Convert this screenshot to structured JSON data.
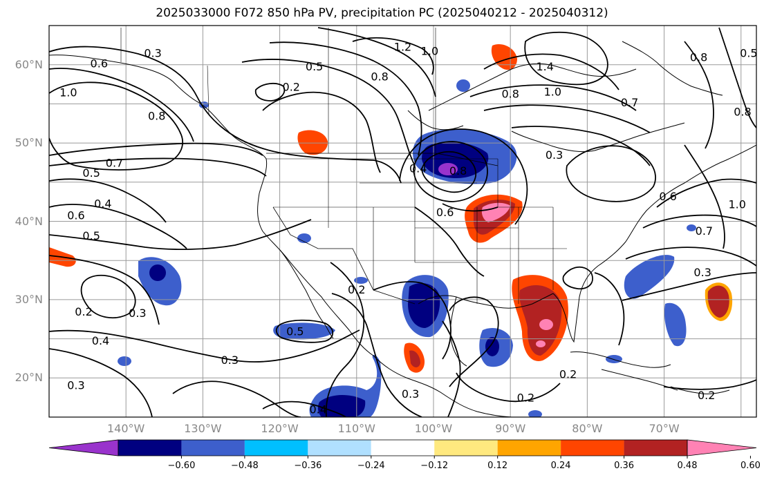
{
  "title": "2025033000 F072 850 hPa PV, precipitation PC (2025040212 - 2025040312)",
  "map": {
    "lon_range": [
      -150,
      -58
    ],
    "lat_range": [
      15,
      65
    ],
    "lat_ticks": [
      {
        "value": 60,
        "label": "60°N"
      },
      {
        "value": 50,
        "label": "50°N"
      },
      {
        "value": 40,
        "label": "40°N"
      },
      {
        "value": 30,
        "label": "30°N"
      },
      {
        "value": 20,
        "label": "20°N"
      }
    ],
    "lon_ticks": [
      {
        "value": -140,
        "label": "140°W"
      },
      {
        "value": -130,
        "label": "130°W"
      },
      {
        "value": -120,
        "label": "120°W"
      },
      {
        "value": -110,
        "label": "110°W"
      },
      {
        "value": -100,
        "label": "100°W"
      },
      {
        "value": -90,
        "label": "90°W"
      },
      {
        "value": -80,
        "label": "80°W"
      },
      {
        "value": -70,
        "label": "70°W"
      }
    ],
    "grid": true,
    "contour_labels": [
      {
        "text": "0.3",
        "lon": -136.5,
        "lat": 61.5
      },
      {
        "text": "0.6",
        "lon": -143.5,
        "lat": 60.2
      },
      {
        "text": "1.0",
        "lon": -147.5,
        "lat": 56.5
      },
      {
        "text": "0.8",
        "lon": -136,
        "lat": 53.5
      },
      {
        "text": "0.7",
        "lon": -141.5,
        "lat": 47.5
      },
      {
        "text": "0.5",
        "lon": -144.5,
        "lat": 46.2
      },
      {
        "text": "0.4",
        "lon": -143,
        "lat": 42.3
      },
      {
        "text": "0.6",
        "lon": -146.5,
        "lat": 40.8
      },
      {
        "text": "0.5",
        "lon": -144.5,
        "lat": 38.2
      },
      {
        "text": "0.2",
        "lon": -145.5,
        "lat": 28.5
      },
      {
        "text": "0.3",
        "lon": -138.5,
        "lat": 28.3
      },
      {
        "text": "0.4",
        "lon": -143.3,
        "lat": 24.8
      },
      {
        "text": "0.3",
        "lon": -146.5,
        "lat": 19.1
      },
      {
        "text": "0.3",
        "lon": -126.5,
        "lat": 22.3
      },
      {
        "text": "0.5",
        "lon": -118,
        "lat": 26
      },
      {
        "text": "0.4",
        "lon": -115,
        "lat": 16
      },
      {
        "text": "0.2",
        "lon": -118.5,
        "lat": 57.2
      },
      {
        "text": "0.5",
        "lon": -115.5,
        "lat": 59.8
      },
      {
        "text": "0.8",
        "lon": -107,
        "lat": 58.5
      },
      {
        "text": "1.2",
        "lon": -104,
        "lat": 62.3
      },
      {
        "text": "1.0",
        "lon": -100.5,
        "lat": 61.8
      },
      {
        "text": "0.4",
        "lon": -102,
        "lat": 46.8
      },
      {
        "text": "0.8",
        "lon": -96.8,
        "lat": 46.5
      },
      {
        "text": "0.6",
        "lon": -98.5,
        "lat": 41.2
      },
      {
        "text": "0.2",
        "lon": -110,
        "lat": 31.3
      },
      {
        "text": "0.3",
        "lon": -103,
        "lat": 18
      },
      {
        "text": "1.4",
        "lon": -85.5,
        "lat": 59.8
      },
      {
        "text": "0.8",
        "lon": -90,
        "lat": 56.3
      },
      {
        "text": "1.0",
        "lon": -84.5,
        "lat": 56.6
      },
      {
        "text": "0.3",
        "lon": -84.3,
        "lat": 48.5
      },
      {
        "text": "0.7",
        "lon": -74.5,
        "lat": 55.2
      },
      {
        "text": "0.6",
        "lon": -69.5,
        "lat": 43.2
      },
      {
        "text": "1.0",
        "lon": -60.5,
        "lat": 42.2
      },
      {
        "text": "0.7",
        "lon": -64.8,
        "lat": 38.8
      },
      {
        "text": "0.3",
        "lon": -65,
        "lat": 33.5
      },
      {
        "text": "0.8",
        "lon": -65.5,
        "lat": 61
      },
      {
        "text": "0.8",
        "lon": -59.8,
        "lat": 54
      },
      {
        "text": "0.5",
        "lon": -59,
        "lat": 61.5
      },
      {
        "text": "0.2",
        "lon": -64.5,
        "lat": 17.8
      },
      {
        "text": "0.2",
        "lon": -82.5,
        "lat": 20.5
      },
      {
        "text": "0.2",
        "lon": -88,
        "lat": 17.5
      }
    ]
  },
  "colorbar": {
    "labels": [
      "−0.60",
      "−0.48",
      "−0.36",
      "−0.24",
      "−0.12",
      "0.12",
      "0.24",
      "0.36",
      "0.48",
      "0.60"
    ],
    "colors": [
      "#9933cc",
      "#000080",
      "#3d5fcc",
      "#00bfff",
      "#b0e0ff",
      "#ffffff",
      "#ffe97f",
      "#ffa500",
      "#ff4500",
      "#b22222",
      "#ff82b4"
    ]
  }
}
